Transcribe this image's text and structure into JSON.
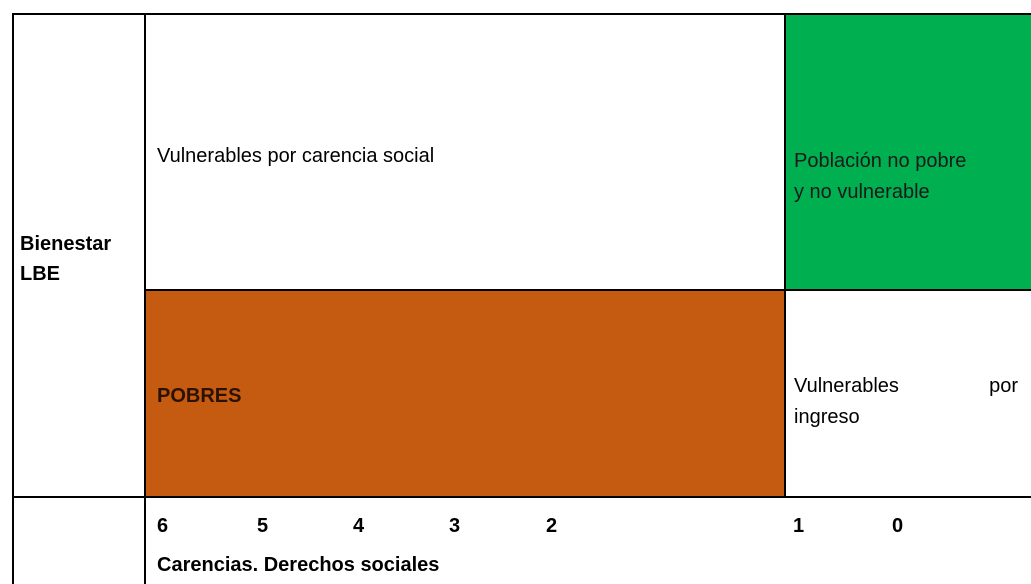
{
  "row_label": [
    "Bienestar",
    "LBE"
  ],
  "cells": {
    "vulnerable_social": "Vulnerables por carencia social",
    "no_poor": [
      "Población no pobre",
      "y no vulnerable"
    ],
    "poor": "POBRES",
    "vulnerable_income": [
      "Vulnerables",
      "por",
      "ingreso"
    ]
  },
  "axis_numbers": [
    6,
    5,
    4,
    3,
    2,
    1,
    0
  ],
  "axis_label": "Carencias. Derechos sociales"
}
